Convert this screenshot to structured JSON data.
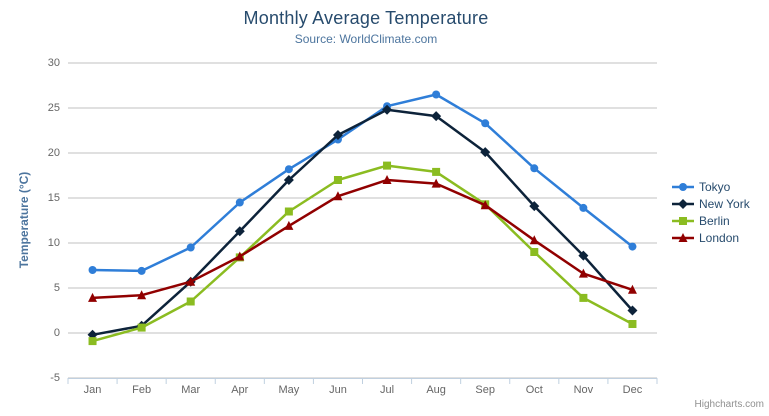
{
  "credits": "Highcharts.com",
  "icons": {
    "menu": "hamburger-icon"
  },
  "colors": {
    "title": "#274b6d",
    "subtitle": "#4d759e",
    "axis_labels": "#666666",
    "gridline": "#c0c0c0",
    "x_axis_line": "#c0d0e0",
    "legend_text": "#274b6d"
  },
  "chart_data": {
    "type": "line",
    "title": "Monthly Average Temperature",
    "subtitle": "Source: WorldClimate.com",
    "xlabel": "",
    "ylabel": "Temperature (°C)",
    "categories": [
      "Jan",
      "Feb",
      "Mar",
      "Apr",
      "May",
      "Jun",
      "Jul",
      "Aug",
      "Sep",
      "Oct",
      "Nov",
      "Dec"
    ],
    "ylim": [
      -5,
      30
    ],
    "ytick_interval": 5,
    "grid": true,
    "legend_position": "right",
    "series": [
      {
        "name": "Tokyo",
        "color": "#2f7ed8",
        "marker": "circle",
        "values": [
          7.0,
          6.9,
          9.5,
          14.5,
          18.2,
          21.5,
          25.2,
          26.5,
          23.3,
          18.3,
          13.9,
          9.6
        ]
      },
      {
        "name": "New York",
        "color": "#0d233a",
        "marker": "diamond",
        "values": [
          -0.2,
          0.8,
          5.7,
          11.3,
          17.0,
          22.0,
          24.8,
          24.1,
          20.1,
          14.1,
          8.6,
          2.5
        ]
      },
      {
        "name": "Berlin",
        "color": "#8bbc21",
        "marker": "square",
        "values": [
          -0.9,
          0.6,
          3.5,
          8.4,
          13.5,
          17.0,
          18.6,
          17.9,
          14.3,
          9.0,
          3.9,
          1.0
        ]
      },
      {
        "name": "London",
        "color": "#910000",
        "marker": "triangle",
        "values": [
          3.9,
          4.2,
          5.7,
          8.5,
          11.9,
          15.2,
          17.0,
          16.6,
          14.2,
          10.3,
          6.6,
          4.8
        ]
      }
    ]
  }
}
